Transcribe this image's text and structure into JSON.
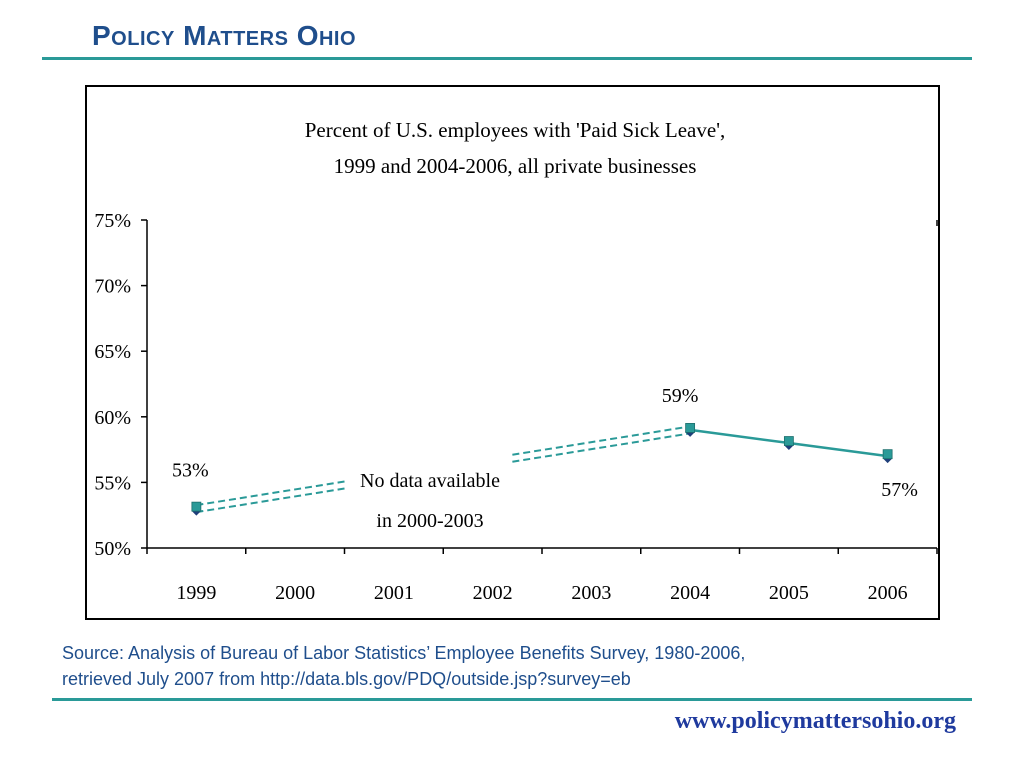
{
  "header": {
    "title": "Policy Matters Ohio"
  },
  "chart_data": {
    "type": "line",
    "title_line1": "Percent of U.S. employees with 'Paid Sick Leave',",
    "title_line2": "1999 and 2004-2006, all private businesses",
    "categories": [
      "1999",
      "2000",
      "2001",
      "2002",
      "2003",
      "2004",
      "2005",
      "2006"
    ],
    "y_ticks": [
      "50%",
      "55%",
      "60%",
      "65%",
      "70%",
      "75%"
    ],
    "ylim": [
      50,
      75
    ],
    "series": [
      {
        "values": [
          53,
          null,
          null,
          null,
          null,
          59,
          58,
          57
        ],
        "color": "#2a9a98",
        "marker_color": "#1f3f7a"
      }
    ],
    "data_labels": {
      "1999": "53%",
      "2004": "59%",
      "2006": "57%"
    },
    "annotation_line1": "No data available",
    "annotation_line2": "in 2000-2003",
    "gap_line_color": "#2a9a98"
  },
  "source": {
    "line1": "Source: Analysis of Bureau of Labor Statistics’ Employee Benefits Survey, 1980-2006,",
    "line2": "retrieved July 2007 from http://data.bls.gov/PDQ/outside.jsp?survey=eb"
  },
  "footer": {
    "url": "www.policymattersohio.org"
  }
}
